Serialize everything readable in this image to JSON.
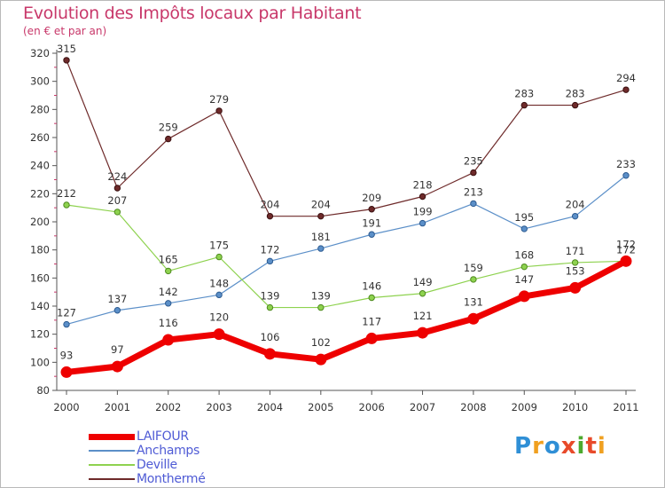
{
  "header": {
    "title": "Evolution des Impôts locaux par Habitant",
    "subtitle": "(en € et par an)"
  },
  "logo": {
    "text": "Proxiti",
    "letters": [
      {
        "char": "P",
        "color": "#2f8fd6"
      },
      {
        "char": "r",
        "color": "#f0a020"
      },
      {
        "char": "o",
        "color": "#2f8fd6"
      },
      {
        "char": "x",
        "color": "#e84a2a"
      },
      {
        "char": "i",
        "color": "#4caa2e"
      },
      {
        "char": "t",
        "color": "#e84a2a"
      },
      {
        "char": "i",
        "color": "#f0a020"
      }
    ]
  },
  "chart_data": {
    "type": "line",
    "title": "Evolution des Impôts locaux par Habitant",
    "subtitle": "(en € et par an)",
    "xlabel": "",
    "ylabel": "",
    "x": [
      "2000",
      "2001",
      "2002",
      "2003",
      "2004",
      "2005",
      "2006",
      "2007",
      "2008",
      "2009",
      "2010",
      "2011"
    ],
    "ylim": [
      80,
      320
    ],
    "yticks": [
      80,
      100,
      120,
      140,
      160,
      180,
      200,
      220,
      240,
      260,
      280,
      300,
      320
    ],
    "grid": false,
    "legend_position": "bottom-left",
    "series": [
      {
        "name": "LAIFOUR",
        "color": "#ee0000",
        "values": [
          93,
          97,
          116,
          120,
          106,
          102,
          117,
          121,
          131,
          147,
          153,
          172
        ]
      },
      {
        "name": "Anchamps",
        "color": "#5b8fc8",
        "values": [
          127,
          137,
          142,
          148,
          172,
          181,
          191,
          199,
          213,
          195,
          204,
          233
        ]
      },
      {
        "name": "Deville",
        "color": "#8ed24f",
        "values": [
          212,
          207,
          165,
          175,
          139,
          139,
          146,
          149,
          159,
          168,
          171,
          172
        ]
      },
      {
        "name": "Monthermé",
        "color": "#6e2a2a",
        "values": [
          315,
          224,
          259,
          279,
          204,
          204,
          209,
          218,
          235,
          283,
          283,
          294
        ]
      }
    ]
  }
}
